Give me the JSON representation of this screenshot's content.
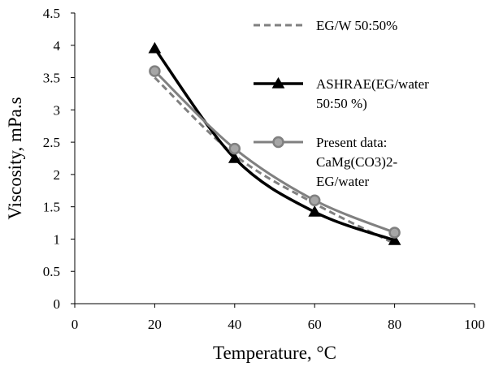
{
  "chart_data": {
    "type": "line",
    "title": "",
    "xlabel": "Temperature, °C",
    "ylabel": "Viscosity, mPa.s",
    "xlim": [
      0,
      100
    ],
    "ylim": [
      0,
      4.5
    ],
    "x_ticks": [
      {
        "value": 0,
        "label": "0"
      },
      {
        "value": 20,
        "label": "20"
      },
      {
        "value": 40,
        "label": "40"
      },
      {
        "value": 60,
        "label": "60"
      },
      {
        "value": 80,
        "label": "80"
      },
      {
        "value": 100,
        "label": "100"
      }
    ],
    "y_ticks": [
      {
        "value": 0,
        "label": "0"
      },
      {
        "value": 0.5,
        "label": "0.5"
      },
      {
        "value": 1,
        "label": "1"
      },
      {
        "value": 1.5,
        "label": "1.5"
      },
      {
        "value": 2,
        "label": "2"
      },
      {
        "value": 2.5,
        "label": "2.5"
      },
      {
        "value": 3,
        "label": "3"
      },
      {
        "value": 3.5,
        "label": "3.5"
      },
      {
        "value": 4,
        "label": "4"
      },
      {
        "value": 4.5,
        "label": "4.5"
      }
    ],
    "grid": false,
    "legend_position": "right",
    "series": [
      {
        "name": "EG/W 50:50%",
        "name_lines": [
          "EG/W 50:50%"
        ],
        "color": "#808080",
        "line_style": "dashed",
        "marker": "none",
        "x": [
          20,
          40,
          60,
          80
        ],
        "y": [
          3.5,
          2.3,
          1.55,
          0.93
        ]
      },
      {
        "name": "ASHRAE(EG/water 50:50 %)",
        "name_lines": [
          "ASHRAE(EG/water",
          "50:50 %)"
        ],
        "color": "#000000",
        "line_style": "solid",
        "marker": "triangle",
        "x": [
          20,
          40,
          60,
          80
        ],
        "y": [
          3.95,
          2.25,
          1.42,
          0.98
        ]
      },
      {
        "name": "Present data: CaMg(CO3)2-EG/water",
        "name_lines": [
          "Present data:",
          "CaMg(CO3)2-",
          "EG/water"
        ],
        "color": "#808080",
        "marker_fill": "#a6a6a6",
        "line_style": "solid",
        "marker": "circle",
        "x": [
          20,
          40,
          60,
          80
        ],
        "y": [
          3.6,
          2.4,
          1.6,
          1.1
        ]
      }
    ]
  }
}
